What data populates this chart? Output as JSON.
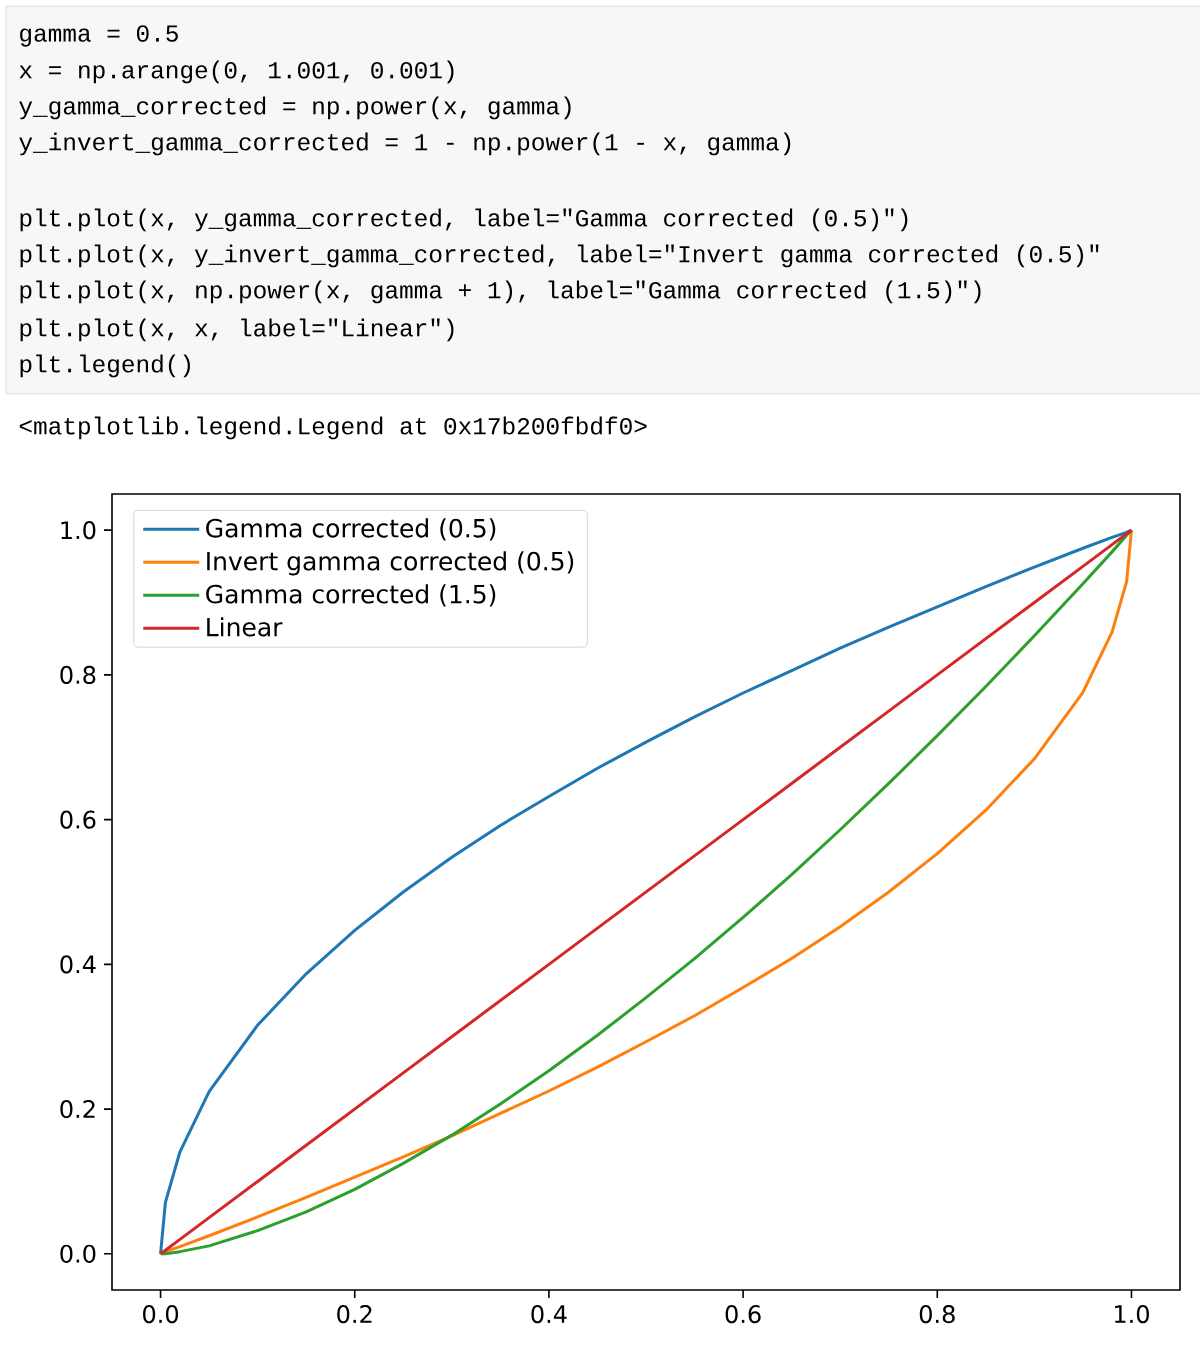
{
  "chart_data": {
    "type": "line",
    "annotations": [
      "gamma = 0.5",
      "x = np.arange(0, 1.001, 0.001)",
      "y_gamma_corrected = np.power(x, gamma)",
      "y_invert_gamma_corrected = 1 - np.power(1 - x, gamma)",
      "plt.plot(x, y_gamma_corrected, label=\"Gamma corrected (0.5)\")",
      "plt.plot(x, y_invert_gamma_corrected, label=\"Invert gamma corrected (0.5)\"",
      "plt.plot(x, np.power(x, gamma + 1), label=\"Gamma corrected (1.5)\")",
      "plt.plot(x, x, label=\"Linear\")",
      "plt.legend()",
      "<matplotlib.legend.Legend at 0x17b200fbdf0>"
    ],
    "x": [
      0,
      0.005,
      0.02,
      0.05,
      0.1,
      0.15,
      0.2,
      0.25,
      0.3,
      0.35,
      0.4,
      0.45,
      0.5,
      0.55,
      0.6,
      0.65,
      0.7,
      0.75,
      0.8,
      0.85,
      0.9,
      0.95,
      0.98,
      0.995,
      1
    ],
    "series": [
      {
        "name": "Gamma corrected (0.5)",
        "color": "#1f77b4",
        "values": [
          0,
          0.071,
          0.141,
          0.224,
          0.316,
          0.387,
          0.447,
          0.5,
          0.548,
          0.592,
          0.632,
          0.671,
          0.707,
          0.742,
          0.775,
          0.806,
          0.837,
          0.866,
          0.894,
          0.922,
          0.949,
          0.975,
          0.99,
          0.997,
          1
        ]
      },
      {
        "name": "Invert gamma corrected (0.5)",
        "color": "#ff7f0e",
        "values": [
          0,
          0.003,
          0.01,
          0.025,
          0.051,
          0.078,
          0.106,
          0.134,
          0.163,
          0.194,
          0.225,
          0.258,
          0.293,
          0.329,
          0.368,
          0.408,
          0.452,
          0.5,
          0.553,
          0.613,
          0.684,
          0.776,
          0.859,
          0.929,
          1
        ]
      },
      {
        "name": "Gamma corrected (1.5)",
        "color": "#2ca02c",
        "values": [
          0,
          0,
          0.003,
          0.011,
          0.032,
          0.058,
          0.089,
          0.125,
          0.164,
          0.207,
          0.253,
          0.302,
          0.354,
          0.408,
          0.465,
          0.524,
          0.586,
          0.65,
          0.716,
          0.784,
          0.854,
          0.926,
          0.97,
          0.993,
          1
        ]
      },
      {
        "name": "Linear",
        "color": "#d62728",
        "values": [
          0,
          0.005,
          0.02,
          0.05,
          0.1,
          0.15,
          0.2,
          0.25,
          0.3,
          0.35,
          0.4,
          0.45,
          0.5,
          0.55,
          0.6,
          0.65,
          0.7,
          0.75,
          0.8,
          0.85,
          0.9,
          0.95,
          0.98,
          0.995,
          1
        ]
      }
    ],
    "xlim": [
      -0.05,
      1.05
    ],
    "ylim": [
      -0.05,
      1.05
    ],
    "xticks": [
      {
        "value": 0,
        "label": "0.0"
      },
      {
        "value": 0.2,
        "label": "0.2"
      },
      {
        "value": 0.4,
        "label": "0.4"
      },
      {
        "value": 0.6,
        "label": "0.6"
      },
      {
        "value": 0.8,
        "label": "0.8"
      },
      {
        "value": 1,
        "label": "1.0"
      }
    ],
    "yticks": [
      {
        "value": 0,
        "label": "0.0"
      },
      {
        "value": 0.2,
        "label": "0.2"
      },
      {
        "value": 0.4,
        "label": "0.4"
      },
      {
        "value": 0.6,
        "label": "0.6"
      },
      {
        "value": 0.8,
        "label": "0.8"
      },
      {
        "value": 1,
        "label": "1.0"
      }
    ],
    "grid": false,
    "legend": "top left",
    "line_style": "solid"
  }
}
